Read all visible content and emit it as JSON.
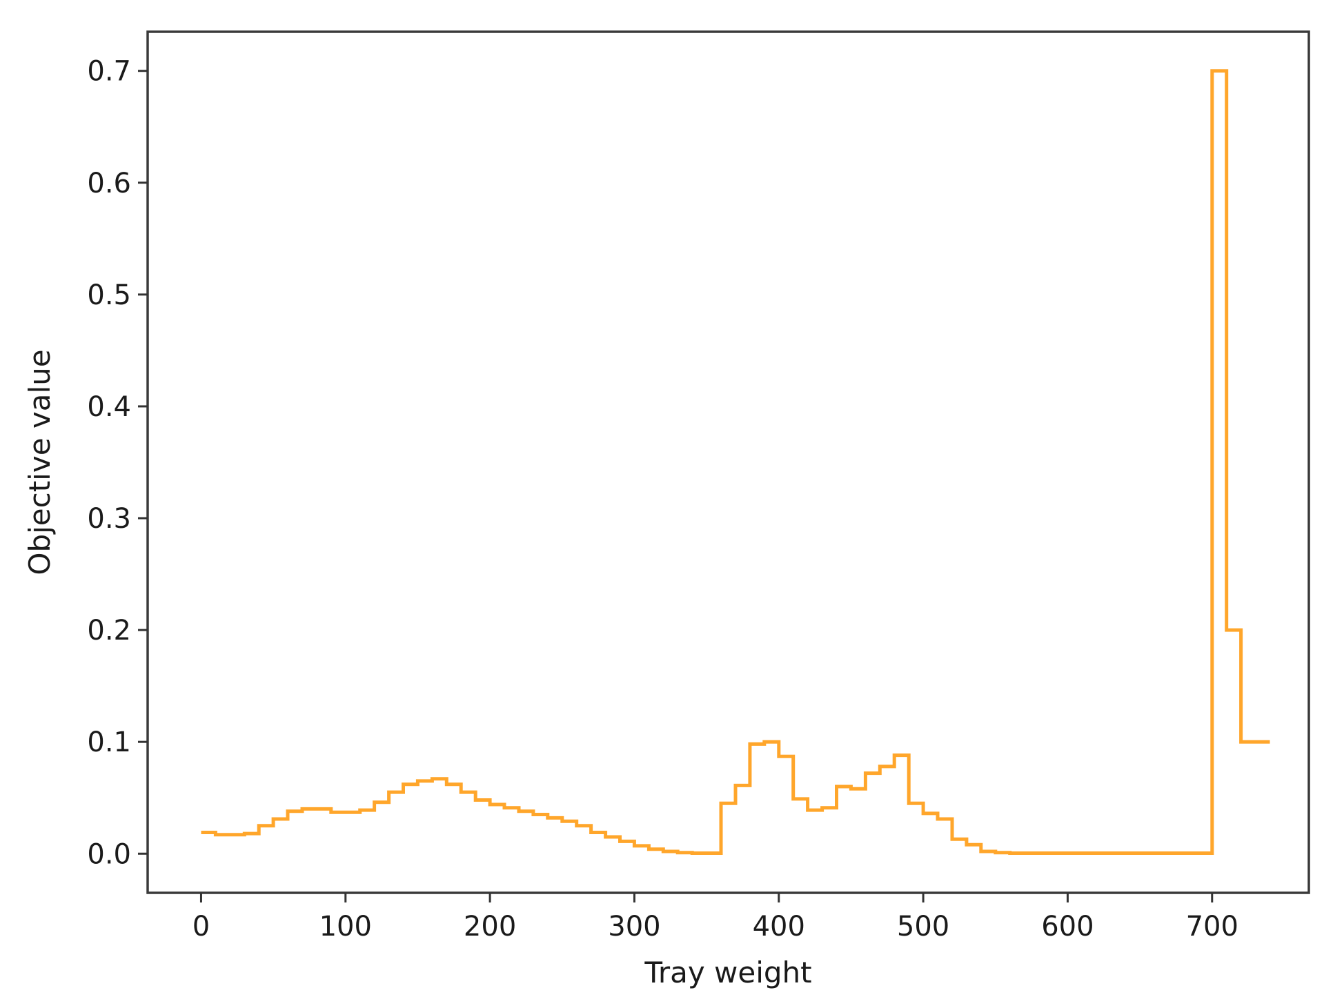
{
  "chart_data": {
    "type": "line",
    "drawstyle": "steps-post",
    "title": "",
    "xlabel": "Tray weight",
    "ylabel": "Objective value",
    "xlim": [
      -37,
      767
    ],
    "ylim": [
      -0.035,
      0.735
    ],
    "xticks": [
      0,
      100,
      200,
      300,
      400,
      500,
      600,
      700
    ],
    "xtick_labels": [
      "0",
      "100",
      "200",
      "300",
      "400",
      "500",
      "600",
      "700"
    ],
    "yticks": [
      0.0,
      0.1,
      0.2,
      0.3,
      0.4,
      0.5,
      0.6,
      0.7
    ],
    "ytick_labels": [
      "0.0",
      "0.1",
      "0.2",
      "0.3",
      "0.4",
      "0.5",
      "0.6",
      "0.7"
    ],
    "grid": false,
    "legend": "none",
    "series": [
      {
        "color": "#FFA62B",
        "x": [
          0,
          10,
          20,
          30,
          40,
          50,
          60,
          70,
          80,
          90,
          100,
          110,
          120,
          130,
          140,
          150,
          160,
          170,
          180,
          190,
          200,
          210,
          220,
          230,
          240,
          250,
          260,
          270,
          280,
          290,
          300,
          310,
          320,
          330,
          340,
          350,
          360,
          370,
          380,
          390,
          400,
          410,
          420,
          430,
          440,
          450,
          460,
          470,
          480,
          490,
          500,
          510,
          520,
          530,
          540,
          550,
          560,
          570,
          580,
          590,
          600,
          610,
          620,
          630,
          640,
          650,
          660,
          670,
          680,
          690,
          700,
          710,
          720,
          730
        ],
        "y": [
          0.019,
          0.017,
          0.017,
          0.018,
          0.025,
          0.031,
          0.038,
          0.04,
          0.04,
          0.037,
          0.037,
          0.039,
          0.046,
          0.055,
          0.062,
          0.065,
          0.067,
          0.062,
          0.055,
          0.048,
          0.044,
          0.041,
          0.038,
          0.035,
          0.032,
          0.029,
          0.025,
          0.019,
          0.015,
          0.011,
          0.007,
          0.004,
          0.002,
          0.001,
          0.0005,
          0.0005,
          0.045,
          0.061,
          0.098,
          0.1,
          0.087,
          0.049,
          0.039,
          0.041,
          0.06,
          0.058,
          0.072,
          0.078,
          0.088,
          0.045,
          0.036,
          0.031,
          0.013,
          0.008,
          0.002,
          0.001,
          0.0005,
          0.0005,
          0.0005,
          0.0005,
          0.0005,
          0.0005,
          0.0005,
          0.0005,
          0.0005,
          0.0005,
          0.0005,
          0.0005,
          0.0005,
          0.0005,
          0.7,
          0.2,
          0.1,
          0.1
        ]
      }
    ]
  }
}
